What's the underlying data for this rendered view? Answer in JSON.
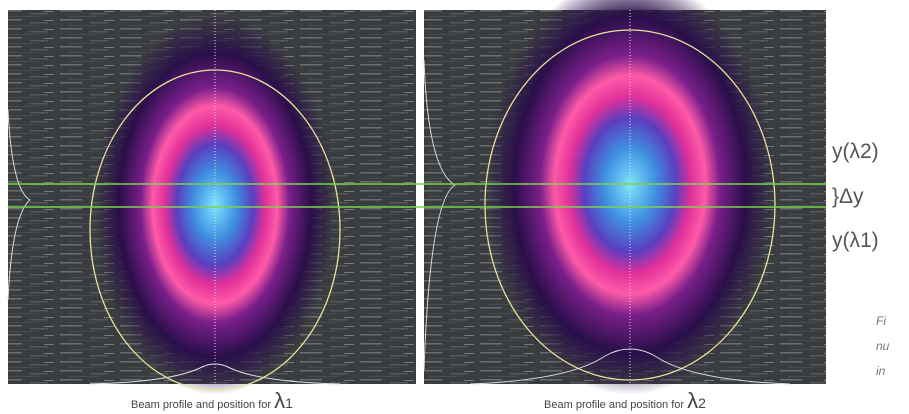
{
  "panels": [
    {
      "caption": "Beam profile and position for ",
      "symbol": "λ",
      "index": "1"
    },
    {
      "caption": "Beam profile and position for ",
      "symbol": "λ",
      "index": "2"
    }
  ],
  "labels": {
    "upper": "y(λ2)",
    "delta": "}Δy",
    "lower": "y(λ1)"
  },
  "side_caption": [
    "Fi",
    "nu",
    "in"
  ]
}
